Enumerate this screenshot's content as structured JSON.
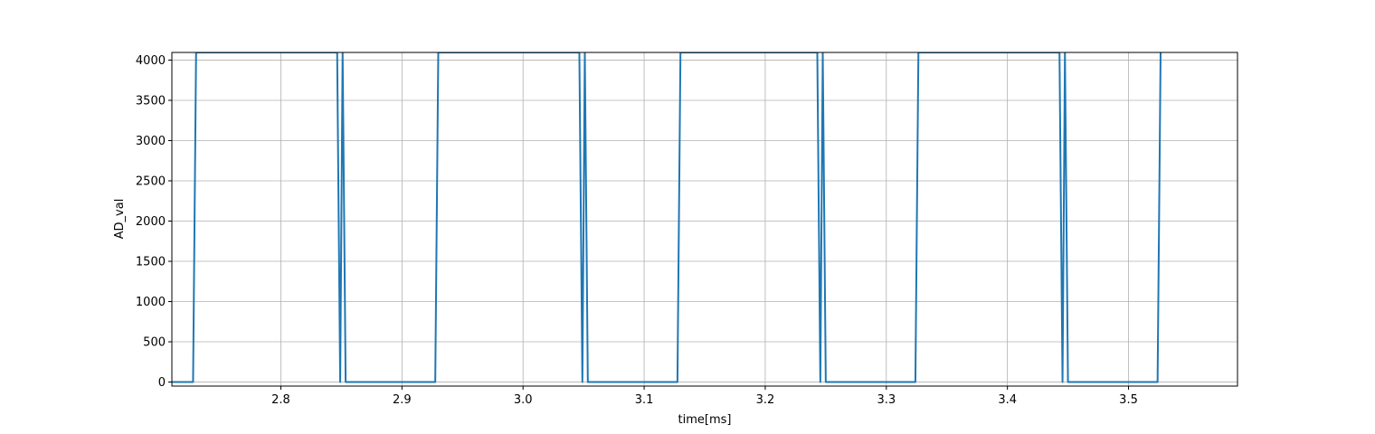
{
  "chart_data": {
    "type": "line",
    "title": "",
    "xlabel": "time[ms]",
    "ylabel": "AD_val",
    "xlim": [
      2.71,
      3.59
    ],
    "ylim": [
      -50,
      4095
    ],
    "grid": true,
    "line_color": "#1f77b4",
    "grid_color": "#b0b0b0",
    "x_ticks": [
      2.8,
      2.9,
      3.0,
      3.1,
      3.2,
      3.3,
      3.4,
      3.5
    ],
    "x_tick_labels": [
      "2.8",
      "2.9",
      "3.0",
      "3.1",
      "3.2",
      "3.3",
      "3.4",
      "3.5"
    ],
    "y_ticks": [
      0,
      500,
      1000,
      1500,
      2000,
      2500,
      3000,
      3500,
      4000
    ],
    "y_tick_labels": [
      "0",
      "500",
      "1000",
      "1500",
      "2000",
      "2500",
      "3000",
      "3500",
      "4000"
    ],
    "series": [
      {
        "x": [
          2.71,
          2.7275,
          2.73,
          2.8465,
          2.849,
          2.851,
          2.8535,
          2.9275,
          2.93,
          3.0465,
          3.049,
          3.051,
          3.0535,
          3.1275,
          3.13,
          3.243,
          3.2455,
          3.2475,
          3.25,
          3.324,
          3.3265,
          3.443,
          3.4455,
          3.4475,
          3.45,
          3.524,
          3.5265
        ],
        "y": [
          0,
          0,
          4095,
          4095,
          0,
          4095,
          0,
          0,
          4095,
          4095,
          0,
          4095,
          0,
          0,
          4095,
          4095,
          0,
          4095,
          0,
          0,
          4095,
          4095,
          0,
          4095,
          0,
          0,
          4095
        ]
      }
    ]
  }
}
